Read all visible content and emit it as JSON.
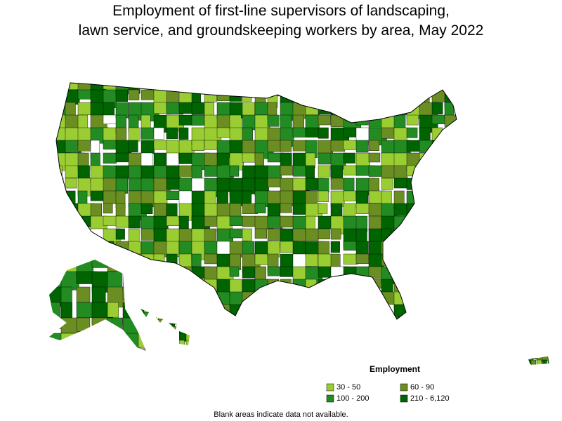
{
  "title": [
    "Employment of first-line supervisors of landscaping,",
    "lawn service, and groundskeeping workers by area, May 2022"
  ],
  "legend": {
    "title": "Employment",
    "items": [
      {
        "label": "30 - 50",
        "color": "#9acd32"
      },
      {
        "label": "60 - 90",
        "color": "#6b8e23"
      },
      {
        "label": "100 - 200",
        "color": "#228b22"
      },
      {
        "label": "210 - 6,120",
        "color": "#006400"
      }
    ]
  },
  "note": "Blank areas indicate data not available."
}
